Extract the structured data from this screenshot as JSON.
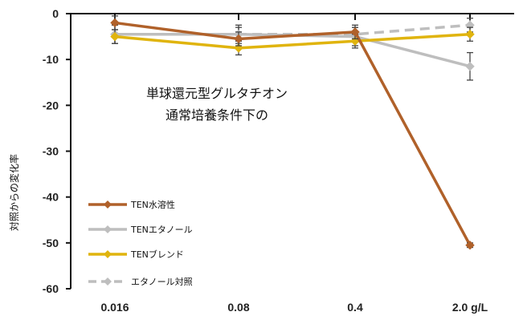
{
  "chart_data": {
    "type": "line",
    "title": "",
    "annotation": [
      "単球還元型グルタチオン",
      "通常培養条件下の"
    ],
    "xlabel": "",
    "ylabel": "対照からの変化率",
    "categories": [
      "0.016",
      "0.08",
      "0.4",
      "2.0 g/L"
    ],
    "ylim": [
      -60,
      0
    ],
    "yticks": [
      0,
      -10,
      -20,
      -30,
      -40,
      -50,
      -60
    ],
    "grid": false,
    "legend_position": "bottom-left",
    "series": [
      {
        "name": "TEN水溶性",
        "color": "#B0612A",
        "dashed": false,
        "values": [
          -2,
          -5.5,
          -4,
          -50.5
        ],
        "errors": [
          1.5,
          1.5,
          1.5,
          0.5
        ]
      },
      {
        "name": "TENエタノール",
        "color": "#BEBEBE",
        "dashed": false,
        "values": [
          -4.5,
          -4.5,
          -5,
          -11.5
        ],
        "errors": [
          2,
          2,
          2,
          3
        ]
      },
      {
        "name": "TENブレンド",
        "color": "#E0B40E",
        "dashed": false,
        "values": [
          -5,
          -7.5,
          -6,
          -4.5
        ],
        "errors": [
          1.5,
          1.5,
          1.5,
          1.5
        ]
      },
      {
        "name": "エタノール対照",
        "color": "#BEBEBE",
        "dashed": true,
        "values": [
          -4.5,
          -4.5,
          -4.5,
          -2.5
        ],
        "errors": [
          2,
          1.5,
          1.5,
          1.5
        ]
      }
    ]
  }
}
